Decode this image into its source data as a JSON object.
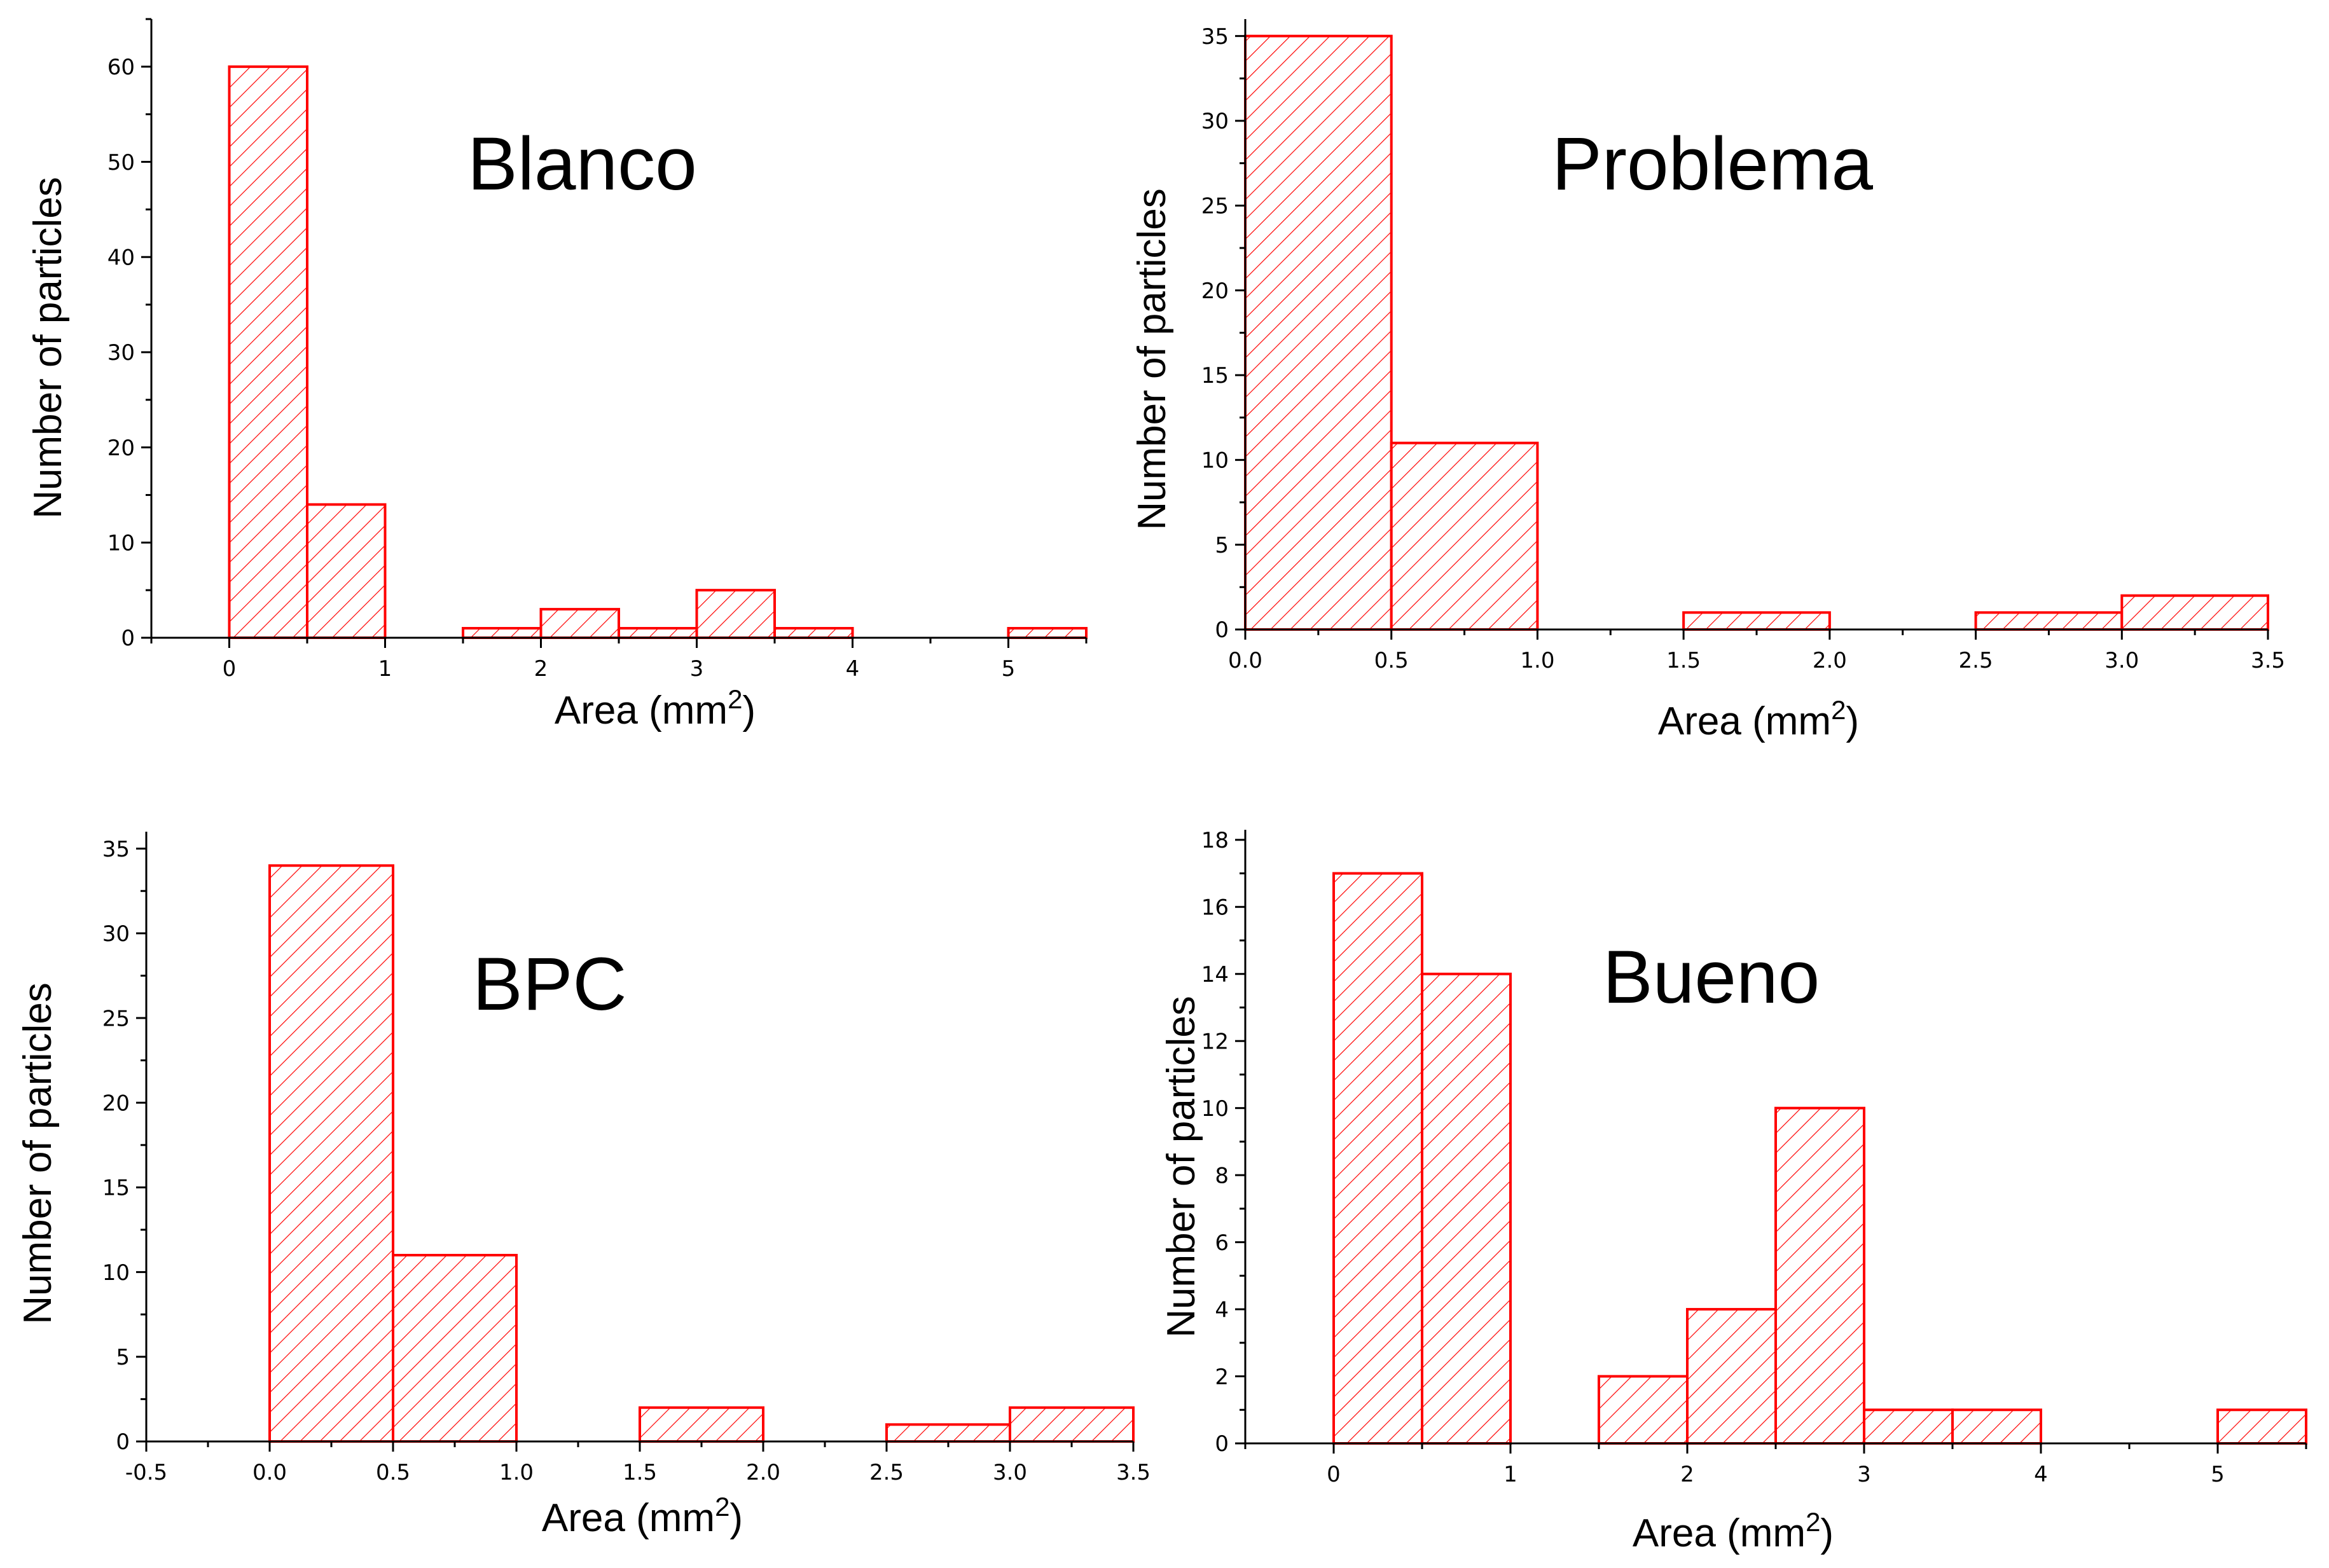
{
  "colors": {
    "bar": "#ff0000",
    "axis": "#000000",
    "background": "#ffffff"
  },
  "chart_data": [
    {
      "type": "bar",
      "title": "Blanco",
      "xlabel": "Area (mm",
      "xlabel_superscript": "2",
      "xlabel_close": ")",
      "ylabel": "Number of particles",
      "xlim": [
        -0.5,
        5.5
      ],
      "ylim": [
        0,
        65
      ],
      "xticks": [
        0,
        1,
        2,
        3,
        4,
        5
      ],
      "xtick_labels": [
        "0",
        "1",
        "2",
        "3",
        "4",
        "5"
      ],
      "yticks": [
        0,
        10,
        20,
        30,
        40,
        50,
        60
      ],
      "ytick_labels": [
        "0",
        "10",
        "20",
        "30",
        "40",
        "50",
        "60"
      ],
      "bin_width": 0.5,
      "bin_starts": [
        0,
        0.5,
        1.5,
        2,
        2.5,
        3,
        3.5,
        5
      ],
      "values": [
        60,
        14,
        1,
        3,
        1,
        5,
        1,
        1
      ],
      "grid": false
    },
    {
      "type": "bar",
      "title": "Problema",
      "xlabel": "Area (mm",
      "xlabel_superscript": "2",
      "xlabel_close": ")",
      "ylabel": "Number of particles",
      "xlim": [
        0,
        3.5
      ],
      "ylim": [
        0,
        36
      ],
      "xticks": [
        0,
        0.5,
        1,
        1.5,
        2,
        2.5,
        3,
        3.5
      ],
      "xtick_labels": [
        "0.0",
        "0.5",
        "1.0",
        "1.5",
        "2.0",
        "2.5",
        "3.0",
        "3.5"
      ],
      "yticks": [
        0,
        5,
        10,
        15,
        20,
        25,
        30,
        35
      ],
      "ytick_labels": [
        "0",
        "5",
        "10",
        "15",
        "20",
        "25",
        "30",
        "35"
      ],
      "bin_width": 0.5,
      "bin_starts": [
        0,
        0.5,
        1.5,
        2.5,
        3
      ],
      "values": [
        35,
        11,
        1,
        1,
        2
      ],
      "grid": false
    },
    {
      "type": "bar",
      "title": "BPC",
      "xlabel": "Area (mm",
      "xlabel_superscript": "2",
      "xlabel_close": ")",
      "ylabel": "Number of particles",
      "xlim": [
        -0.5,
        3.5
      ],
      "ylim": [
        0,
        36
      ],
      "xticks": [
        -0.5,
        0,
        0.5,
        1,
        1.5,
        2,
        2.5,
        3,
        3.5
      ],
      "xtick_labels": [
        "-0.5",
        "0.0",
        "0.5",
        "1.0",
        "1.5",
        "2.0",
        "2.5",
        "3.0",
        "3.5"
      ],
      "yticks": [
        0,
        5,
        10,
        15,
        20,
        25,
        30,
        35
      ],
      "ytick_labels": [
        "0",
        "5",
        "10",
        "15",
        "20",
        "25",
        "30",
        "35"
      ],
      "bin_width": 0.5,
      "bin_starts": [
        0,
        0.5,
        1.5,
        2.5,
        3
      ],
      "values": [
        34,
        11,
        2,
        1,
        2
      ],
      "grid": false
    },
    {
      "type": "bar",
      "title": "Bueno",
      "xlabel": "Area (mm",
      "xlabel_superscript": "2",
      "xlabel_close": ")",
      "ylabel": "Number of particles",
      "xlim": [
        -0.5,
        5.5
      ],
      "ylim": [
        0,
        18.3
      ],
      "xticks": [
        0,
        1,
        2,
        3,
        4,
        5
      ],
      "xtick_labels": [
        "0",
        "1",
        "2",
        "3",
        "4",
        "5"
      ],
      "yticks": [
        0,
        2,
        4,
        6,
        8,
        10,
        12,
        14,
        16,
        18
      ],
      "ytick_labels": [
        "0",
        "2",
        "4",
        "6",
        "8",
        "10",
        "12",
        "14",
        "16",
        "18"
      ],
      "bin_width": 0.5,
      "bin_starts": [
        0,
        0.5,
        1.5,
        2,
        2.5,
        3,
        3.5,
        5
      ],
      "values": [
        17,
        14,
        2,
        4,
        10,
        1,
        1,
        1
      ],
      "grid": false
    }
  ]
}
